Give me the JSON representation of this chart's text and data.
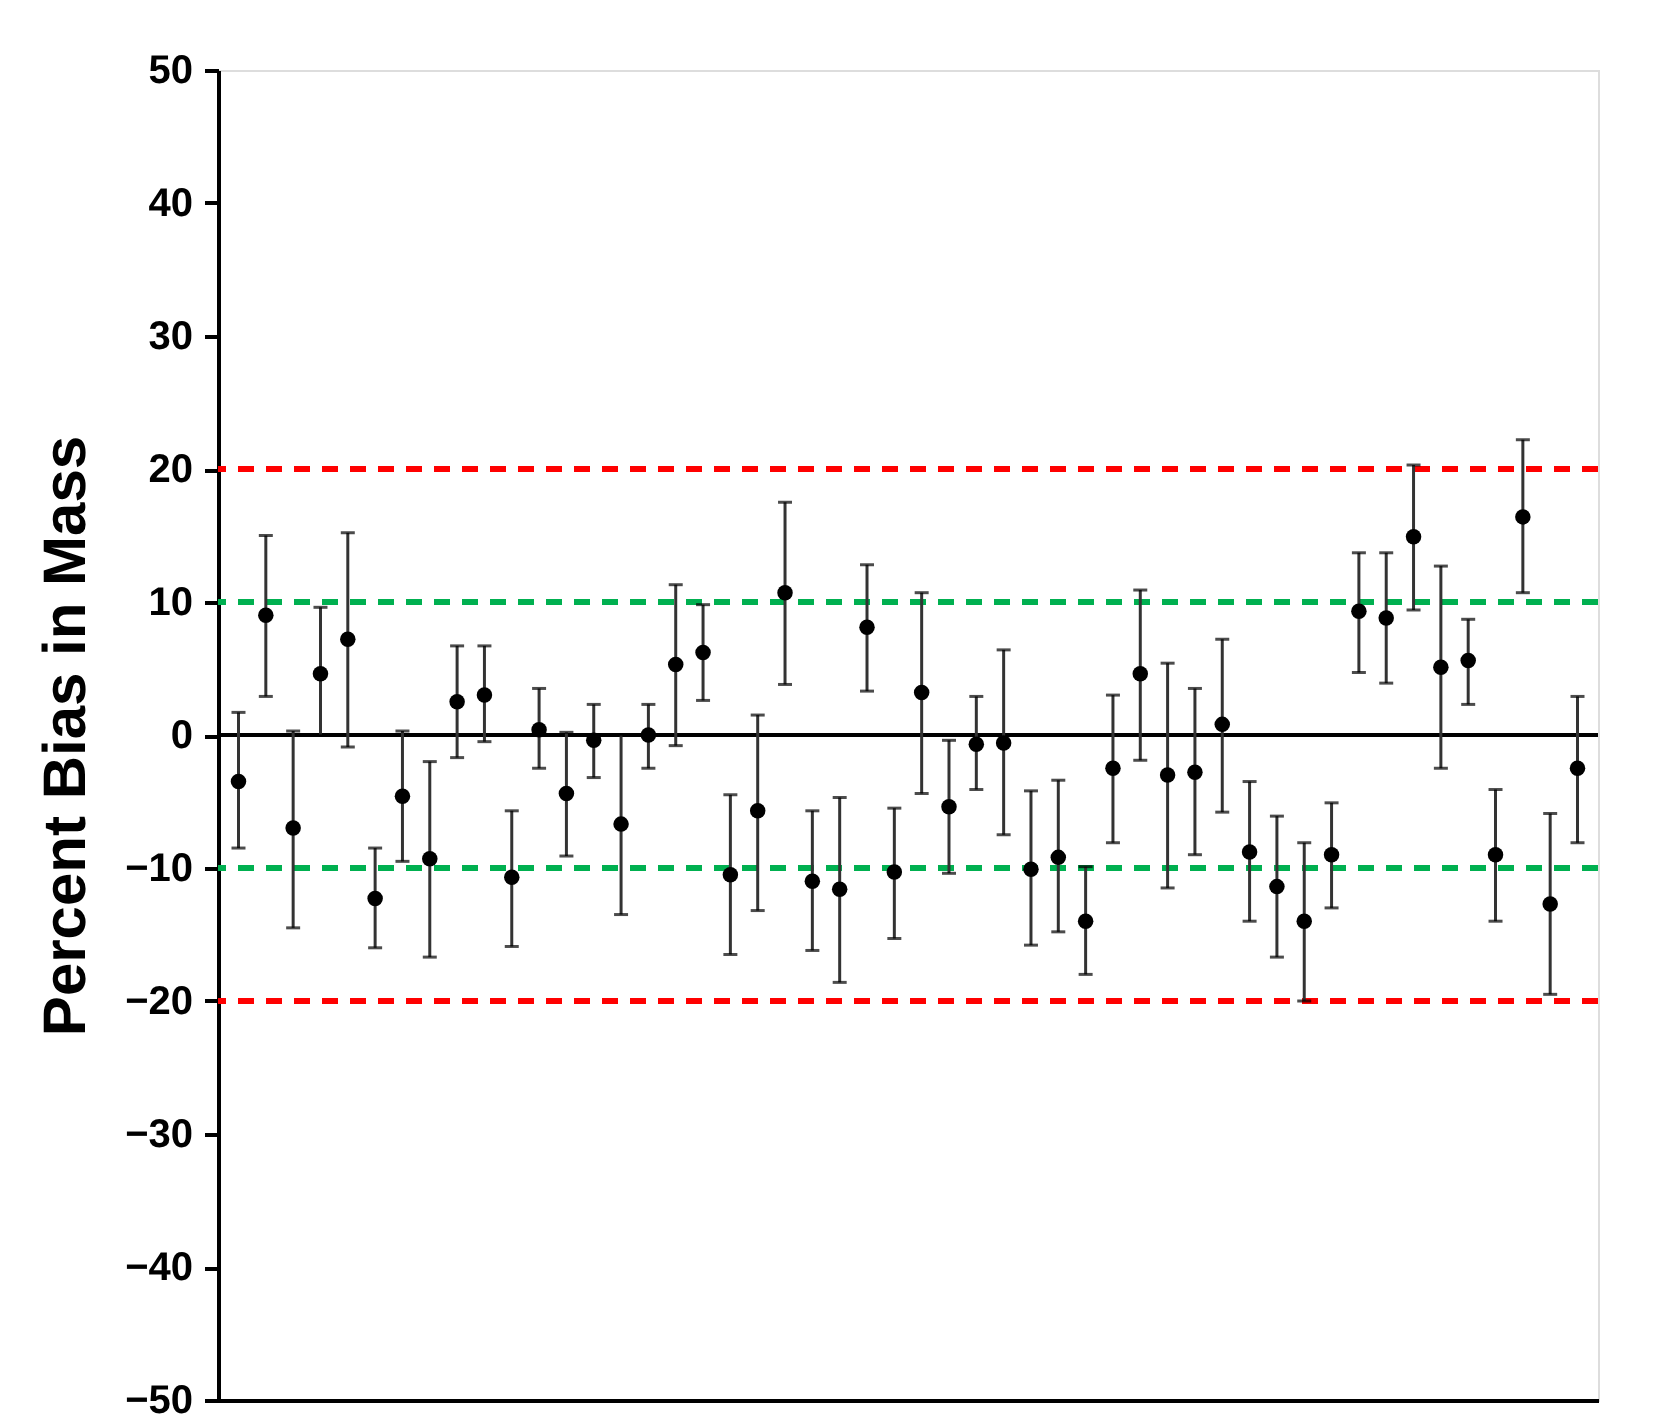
{
  "chart_data": {
    "type": "scatter",
    "ylabel": "Percent Bias in Mass",
    "categories": [
      null,
      null,
      null,
      null,
      null,
      null,
      null,
      null,
      null,
      null,
      null,
      null,
      null,
      null,
      null,
      null,
      null,
      null,
      null,
      null,
      null,
      null,
      null,
      null,
      null,
      null,
      null,
      null,
      null,
      null,
      null,
      null,
      null,
      null,
      null,
      null,
      null,
      null,
      null,
      null,
      null,
      null,
      null,
      null,
      null,
      null,
      null,
      null,
      null,
      null
    ],
    "values": [
      -3.5,
      9,
      -7,
      4.6,
      7.2,
      -12.3,
      -4.6,
      -9.3,
      2.5,
      3,
      -10.7,
      0.4,
      -4.4,
      -0.4,
      -6.7,
      0,
      5.3,
      6.2,
      -10.5,
      -5.7,
      10.7,
      -11,
      -11.6,
      8.1,
      -10.3,
      3.2,
      -5.4,
      -0.7,
      -0.6,
      -10.1,
      -9.2,
      -14,
      -2.5,
      4.6,
      -3,
      -2.8,
      0.8,
      -8.8,
      -11.4,
      -14,
      -9,
      9.3,
      8.8,
      14.9,
      5.1,
      5.6,
      -9,
      16.4,
      -12.7,
      -2.5
    ],
    "errors": [
      [
        -8.5,
        1.7
      ],
      [
        2.9,
        15
      ],
      [
        -14.5,
        0.3
      ],
      [
        0,
        9.6
      ],
      [
        -0.9,
        15.2
      ],
      [
        -16,
        -8.5
      ],
      [
        -9.5,
        0.3
      ],
      [
        -16.7,
        -2
      ],
      [
        -1.7,
        6.7
      ],
      [
        -0.5,
        6.7
      ],
      [
        -15.9,
        -5.7
      ],
      [
        -2.5,
        3.5
      ],
      [
        -9.1,
        0.2
      ],
      [
        -3.2,
        2.3
      ],
      [
        -13.5,
        0
      ],
      [
        -2.5,
        2.3
      ],
      [
        -0.8,
        11.3
      ],
      [
        2.6,
        9.8
      ],
      [
        -16.5,
        -4.5
      ],
      [
        -13.2,
        1.5
      ],
      [
        3.8,
        17.5
      ],
      [
        -16.2,
        -5.7
      ],
      [
        -18.6,
        -4.7
      ],
      [
        3.3,
        12.8
      ],
      [
        -15.3,
        -5.5
      ],
      [
        -4.4,
        10.7
      ],
      [
        -10.4,
        -0.4
      ],
      [
        -4.1,
        2.9
      ],
      [
        -7.5,
        6.4
      ],
      [
        -15.8,
        -4.2
      ],
      [
        -14.8,
        -3.4
      ],
      [
        -18,
        -9.9
      ],
      [
        -8.1,
        3
      ],
      [
        -1.9,
        10.9
      ],
      [
        -11.5,
        5.4
      ],
      [
        -9,
        3.5
      ],
      [
        -5.8,
        7.2
      ],
      [
        -14,
        -3.5
      ],
      [
        -16.7,
        -6.1
      ],
      [
        -20,
        -8.1
      ],
      [
        -13,
        -5.1
      ],
      [
        4.7,
        13.7
      ],
      [
        3.9,
        13.7
      ],
      [
        9.4,
        20.3
      ],
      [
        -2.5,
        12.7
      ],
      [
        2.3,
        8.7
      ],
      [
        -14,
        -4.1
      ],
      [
        10.7,
        22.2
      ],
      [
        -19.5,
        -5.9
      ],
      [
        -8.1,
        2.9
      ]
    ],
    "color": "#000000",
    "marker": "circle",
    "ylim": [
      -50,
      50
    ],
    "yticks": [
      -50,
      -40,
      -30,
      -20,
      -10,
      0,
      10,
      20,
      30,
      40,
      50
    ],
    "ref_lines": [
      {
        "axis": "y",
        "value": 20,
        "color": "#ff0000",
        "line_style": "dashed"
      },
      {
        "axis": "y",
        "value": 10,
        "color": "#00b050",
        "line_style": "dashed"
      },
      {
        "axis": "y",
        "value": 0,
        "color": "#000000",
        "line_style": "solid"
      },
      {
        "axis": "y",
        "value": -10,
        "color": "#00b050",
        "line_style": "dashed"
      },
      {
        "axis": "y",
        "value": -20,
        "color": "#ff0000",
        "line_style": "dashed"
      }
    ],
    "grid": false,
    "tick_labels": "y"
  }
}
